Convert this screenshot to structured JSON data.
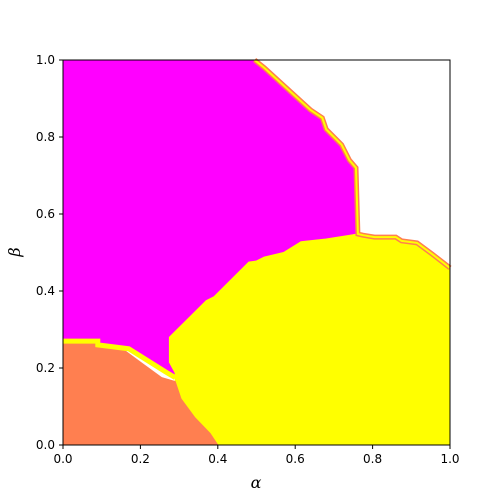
{
  "chart_data": {
    "type": "heatmap",
    "title": "",
    "xlabel": "α",
    "ylabel": "β",
    "xlim": [
      0.0,
      1.0
    ],
    "ylim": [
      0.0,
      1.0
    ],
    "grid": false,
    "legend": "none",
    "xticks": [
      "0.0",
      "0.2",
      "0.4",
      "0.6",
      "0.8",
      "1.0"
    ],
    "yticks": [
      "0.0",
      "0.2",
      "0.4",
      "0.6",
      "0.8",
      "1.0"
    ],
    "background_color": "#ffffff",
    "regions": [
      {
        "color": "#ff00ff",
        "polygon": [
          [
            0,
            1.0
          ],
          [
            0.495,
            1.0
          ],
          [
            0.52,
            0.98
          ],
          [
            0.64,
            0.87
          ],
          [
            0.67,
            0.85
          ],
          [
            0.68,
            0.82
          ],
          [
            0.72,
            0.78
          ],
          [
            0.74,
            0.74
          ],
          [
            0.757,
            0.72
          ],
          [
            0.76,
            0.55
          ],
          [
            0.68,
            0.535
          ],
          [
            0.615,
            0.528
          ],
          [
            0.57,
            0.5
          ],
          [
            0.52,
            0.488
          ],
          [
            0.5,
            0.478
          ],
          [
            0.48,
            0.475
          ],
          [
            0.39,
            0.385
          ],
          [
            0.37,
            0.375
          ],
          [
            0.275,
            0.28
          ],
          [
            0.275,
            0.215
          ],
          [
            0.29,
            0.187
          ],
          [
            0.29,
            0.175
          ],
          [
            0.265,
            0.19
          ],
          [
            0.17,
            0.25
          ],
          [
            0.09,
            0.26
          ],
          [
            0.09,
            0.27
          ],
          [
            0,
            0.275
          ]
        ]
      },
      {
        "color": "#ffff00",
        "polygon": [
          [
            0.275,
            0.28
          ],
          [
            0.37,
            0.375
          ],
          [
            0.39,
            0.385
          ],
          [
            0.48,
            0.475
          ],
          [
            0.5,
            0.478
          ],
          [
            0.52,
            0.488
          ],
          [
            0.57,
            0.5
          ],
          [
            0.615,
            0.528
          ],
          [
            0.68,
            0.535
          ],
          [
            0.762,
            0.548
          ],
          [
            0.775,
            0.545
          ],
          [
            0.805,
            0.54
          ],
          [
            0.86,
            0.54
          ],
          [
            0.875,
            0.53
          ],
          [
            0.915,
            0.525
          ],
          [
            0.955,
            0.495
          ],
          [
            1.0,
            0.46
          ],
          [
            1.0,
            0.0
          ],
          [
            0.4,
            0.0
          ],
          [
            0.38,
            0.03
          ],
          [
            0.34,
            0.072
          ],
          [
            0.305,
            0.12
          ],
          [
            0.29,
            0.165
          ],
          [
            0.29,
            0.187
          ],
          [
            0.275,
            0.215
          ]
        ]
      },
      {
        "color": "#ff7f50",
        "polygon": [
          [
            0,
            0.0
          ],
          [
            0,
            0.265
          ],
          [
            0.09,
            0.265
          ],
          [
            0.09,
            0.255
          ],
          [
            0.16,
            0.245
          ],
          [
            0.2,
            0.215
          ],
          [
            0.255,
            0.175
          ],
          [
            0.29,
            0.165
          ],
          [
            0.305,
            0.12
          ],
          [
            0.34,
            0.072
          ],
          [
            0.38,
            0.03
          ],
          [
            0.4,
            0.0
          ]
        ]
      }
    ],
    "boundaries": [
      {
        "name": "upper-right-edge",
        "color": "#ff7f50",
        "points": [
          [
            0.495,
            1.0
          ],
          [
            0.52,
            0.98
          ],
          [
            0.64,
            0.87
          ],
          [
            0.67,
            0.85
          ],
          [
            0.68,
            0.82
          ],
          [
            0.72,
            0.78
          ],
          [
            0.74,
            0.74
          ],
          [
            0.757,
            0.72
          ],
          [
            0.762,
            0.548
          ],
          [
            0.775,
            0.545
          ],
          [
            0.805,
            0.54
          ],
          [
            0.86,
            0.54
          ],
          [
            0.875,
            0.53
          ],
          [
            0.915,
            0.525
          ],
          [
            0.955,
            0.495
          ],
          [
            1.0,
            0.46
          ]
        ]
      },
      {
        "name": "magenta-coral-edge",
        "color": "#ffff00",
        "points": [
          [
            0,
            0.27
          ],
          [
            0.09,
            0.27
          ],
          [
            0.09,
            0.26
          ],
          [
            0.17,
            0.25
          ],
          [
            0.265,
            0.19
          ],
          [
            0.29,
            0.175
          ]
        ]
      }
    ]
  }
}
